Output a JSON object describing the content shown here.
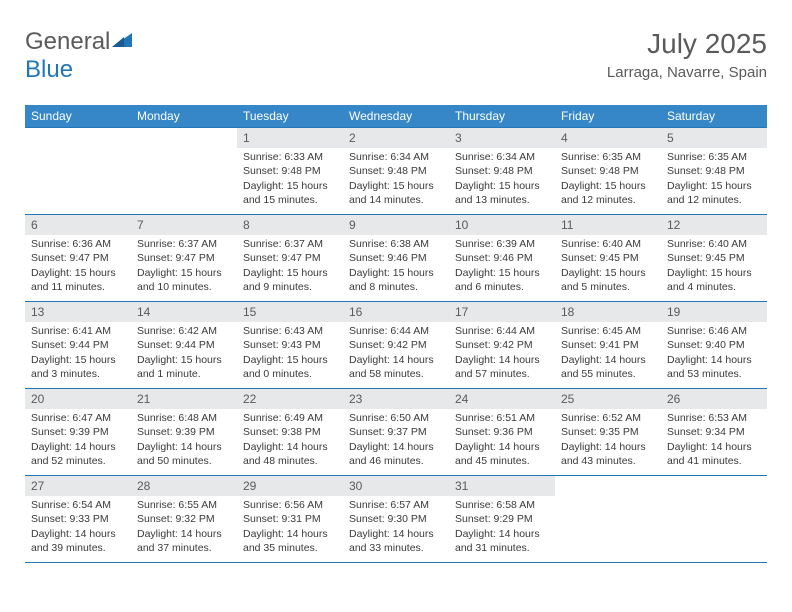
{
  "logo": {
    "text1": "General",
    "text2": "Blue"
  },
  "header": {
    "month": "July 2025",
    "location": "Larraga, Navarre, Spain"
  },
  "colors": {
    "header_bg": "#3587c8",
    "header_text": "#ffffff",
    "border": "#2176b8",
    "daynum_bg": "#e7e8e9",
    "body_text": "#3a3a3a",
    "logo_gray": "#5a5a5a",
    "logo_blue": "#2176b8"
  },
  "days_of_week": [
    "Sunday",
    "Monday",
    "Tuesday",
    "Wednesday",
    "Thursday",
    "Friday",
    "Saturday"
  ],
  "weeks": [
    [
      {
        "empty": true
      },
      {
        "empty": true
      },
      {
        "num": "1",
        "sunrise": "6:33 AM",
        "sunset": "9:48 PM",
        "daylight": "15 hours and 15 minutes."
      },
      {
        "num": "2",
        "sunrise": "6:34 AM",
        "sunset": "9:48 PM",
        "daylight": "15 hours and 14 minutes."
      },
      {
        "num": "3",
        "sunrise": "6:34 AM",
        "sunset": "9:48 PM",
        "daylight": "15 hours and 13 minutes."
      },
      {
        "num": "4",
        "sunrise": "6:35 AM",
        "sunset": "9:48 PM",
        "daylight": "15 hours and 12 minutes."
      },
      {
        "num": "5",
        "sunrise": "6:35 AM",
        "sunset": "9:48 PM",
        "daylight": "15 hours and 12 minutes."
      }
    ],
    [
      {
        "num": "6",
        "sunrise": "6:36 AM",
        "sunset": "9:47 PM",
        "daylight": "15 hours and 11 minutes."
      },
      {
        "num": "7",
        "sunrise": "6:37 AM",
        "sunset": "9:47 PM",
        "daylight": "15 hours and 10 minutes."
      },
      {
        "num": "8",
        "sunrise": "6:37 AM",
        "sunset": "9:47 PM",
        "daylight": "15 hours and 9 minutes."
      },
      {
        "num": "9",
        "sunrise": "6:38 AM",
        "sunset": "9:46 PM",
        "daylight": "15 hours and 8 minutes."
      },
      {
        "num": "10",
        "sunrise": "6:39 AM",
        "sunset": "9:46 PM",
        "daylight": "15 hours and 6 minutes."
      },
      {
        "num": "11",
        "sunrise": "6:40 AM",
        "sunset": "9:45 PM",
        "daylight": "15 hours and 5 minutes."
      },
      {
        "num": "12",
        "sunrise": "6:40 AM",
        "sunset": "9:45 PM",
        "daylight": "15 hours and 4 minutes."
      }
    ],
    [
      {
        "num": "13",
        "sunrise": "6:41 AM",
        "sunset": "9:44 PM",
        "daylight": "15 hours and 3 minutes."
      },
      {
        "num": "14",
        "sunrise": "6:42 AM",
        "sunset": "9:44 PM",
        "daylight": "15 hours and 1 minute."
      },
      {
        "num": "15",
        "sunrise": "6:43 AM",
        "sunset": "9:43 PM",
        "daylight": "15 hours and 0 minutes."
      },
      {
        "num": "16",
        "sunrise": "6:44 AM",
        "sunset": "9:42 PM",
        "daylight": "14 hours and 58 minutes."
      },
      {
        "num": "17",
        "sunrise": "6:44 AM",
        "sunset": "9:42 PM",
        "daylight": "14 hours and 57 minutes."
      },
      {
        "num": "18",
        "sunrise": "6:45 AM",
        "sunset": "9:41 PM",
        "daylight": "14 hours and 55 minutes."
      },
      {
        "num": "19",
        "sunrise": "6:46 AM",
        "sunset": "9:40 PM",
        "daylight": "14 hours and 53 minutes."
      }
    ],
    [
      {
        "num": "20",
        "sunrise": "6:47 AM",
        "sunset": "9:39 PM",
        "daylight": "14 hours and 52 minutes."
      },
      {
        "num": "21",
        "sunrise": "6:48 AM",
        "sunset": "9:39 PM",
        "daylight": "14 hours and 50 minutes."
      },
      {
        "num": "22",
        "sunrise": "6:49 AM",
        "sunset": "9:38 PM",
        "daylight": "14 hours and 48 minutes."
      },
      {
        "num": "23",
        "sunrise": "6:50 AM",
        "sunset": "9:37 PM",
        "daylight": "14 hours and 46 minutes."
      },
      {
        "num": "24",
        "sunrise": "6:51 AM",
        "sunset": "9:36 PM",
        "daylight": "14 hours and 45 minutes."
      },
      {
        "num": "25",
        "sunrise": "6:52 AM",
        "sunset": "9:35 PM",
        "daylight": "14 hours and 43 minutes."
      },
      {
        "num": "26",
        "sunrise": "6:53 AM",
        "sunset": "9:34 PM",
        "daylight": "14 hours and 41 minutes."
      }
    ],
    [
      {
        "num": "27",
        "sunrise": "6:54 AM",
        "sunset": "9:33 PM",
        "daylight": "14 hours and 39 minutes."
      },
      {
        "num": "28",
        "sunrise": "6:55 AM",
        "sunset": "9:32 PM",
        "daylight": "14 hours and 37 minutes."
      },
      {
        "num": "29",
        "sunrise": "6:56 AM",
        "sunset": "9:31 PM",
        "daylight": "14 hours and 35 minutes."
      },
      {
        "num": "30",
        "sunrise": "6:57 AM",
        "sunset": "9:30 PM",
        "daylight": "14 hours and 33 minutes."
      },
      {
        "num": "31",
        "sunrise": "6:58 AM",
        "sunset": "9:29 PM",
        "daylight": "14 hours and 31 minutes."
      },
      {
        "empty": true
      },
      {
        "empty": true
      }
    ]
  ],
  "labels": {
    "sunrise": "Sunrise:",
    "sunset": "Sunset:",
    "daylight": "Daylight:"
  }
}
